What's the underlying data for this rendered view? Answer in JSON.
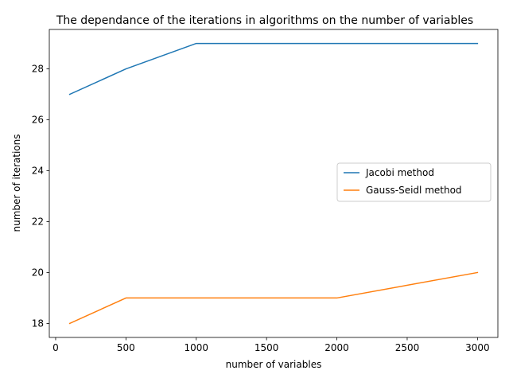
{
  "chart_data": {
    "type": "line",
    "title": "The dependance of the iterations in algorithms on the number of variables",
    "xlabel": "number of variables",
    "ylabel": "number of iterations",
    "x": [
      100,
      500,
      1000,
      2000,
      3000
    ],
    "series": [
      {
        "name": "Jacobi method",
        "color": "#1f77b4",
        "values": [
          27,
          28,
          29,
          29,
          29
        ]
      },
      {
        "name": "Gauss-Seidl method",
        "color": "#ff7f0e",
        "values": [
          18,
          19,
          19,
          19,
          20
        ]
      }
    ],
    "xlim": [
      -45,
      3145
    ],
    "ylim": [
      17.45,
      29.55
    ],
    "xticks": [
      0,
      500,
      1000,
      1500,
      2000,
      2500,
      3000
    ],
    "yticks": [
      18,
      20,
      22,
      24,
      26,
      28
    ],
    "grid": false,
    "legend_position": "center-right"
  }
}
